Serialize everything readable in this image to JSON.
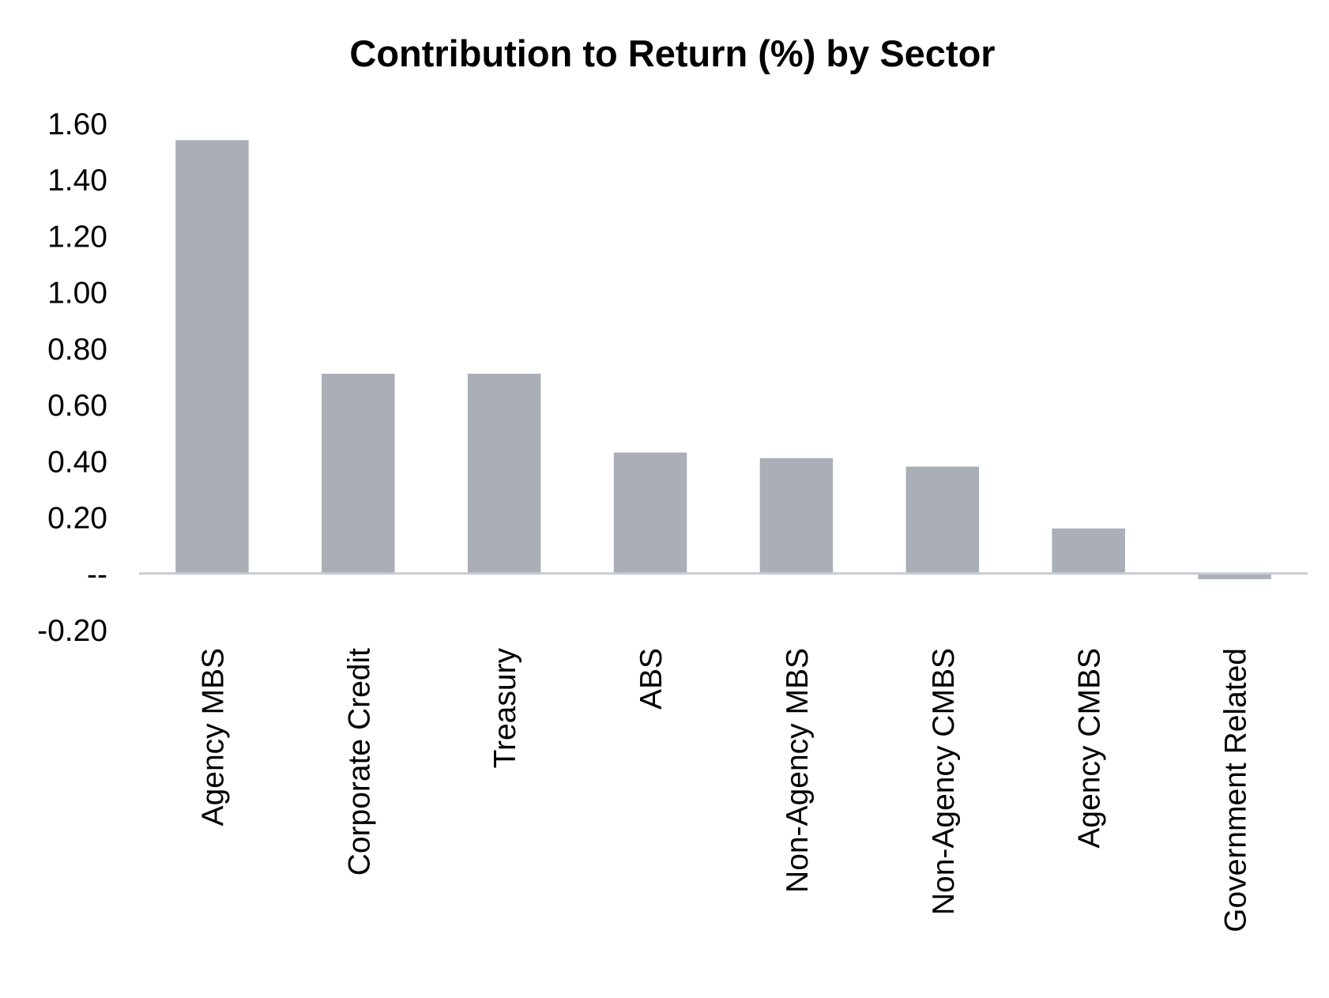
{
  "chart_data": {
    "type": "bar",
    "title": "Contribution to Return (%) by Sector",
    "xlabel": "",
    "ylabel": "",
    "categories": [
      "Agency MBS",
      "Corporate Credit",
      "Treasury",
      "ABS",
      "Non-Agency MBS",
      "Non-Agency CMBS",
      "Agency CMBS",
      "Government Related"
    ],
    "values": [
      1.54,
      0.71,
      0.71,
      0.43,
      0.41,
      0.38,
      0.16,
      -0.02
    ],
    "ylim": [
      -0.2,
      1.6
    ],
    "yticks": [
      1.6,
      1.4,
      1.2,
      1.0,
      0.8,
      0.6,
      0.4,
      0.2,
      0.0,
      -0.2
    ],
    "ytick_labels": [
      "1.60",
      "1.40",
      "1.20",
      "1.00",
      "0.80",
      "0.60",
      "0.40",
      "0.20",
      "--",
      "-0.20"
    ],
    "grid": false,
    "legend": "none",
    "colors": {
      "bar": "#a9aeb7",
      "zero_line": "#c8cbd6",
      "text": "#000000"
    }
  }
}
